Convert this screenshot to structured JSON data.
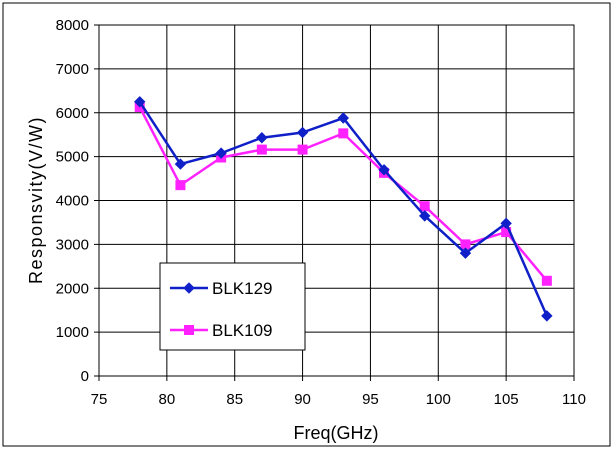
{
  "chart_data": {
    "type": "line",
    "xlabel": "Freq(GHz)",
    "ylabel": "Responsvity(V/W)",
    "xlim": [
      75,
      110
    ],
    "ylim": [
      0,
      8000
    ],
    "x_ticks": [
      "75",
      "80",
      "85",
      "90",
      "95",
      "100",
      "105",
      "110"
    ],
    "y_ticks": [
      "0",
      "1000",
      "2000",
      "3000",
      "4000",
      "5000",
      "6000",
      "7000",
      "8000"
    ],
    "grid": true,
    "legend_position": "bottom-left",
    "x": [
      78,
      81,
      84,
      87,
      90,
      93,
      96,
      99,
      102,
      105,
      108
    ],
    "series": [
      {
        "name": "BLK129",
        "color": "#1020c8",
        "marker": "diamond",
        "values": [
          6250,
          4830,
          5080,
          5430,
          5550,
          5880,
          4700,
          3650,
          2800,
          3480,
          1370
        ]
      },
      {
        "name": "BLK109",
        "color": "#ff22ff",
        "marker": "square",
        "values": [
          6130,
          4350,
          4980,
          5160,
          5160,
          5530,
          4630,
          3870,
          3000,
          3280,
          2170
        ]
      }
    ]
  }
}
